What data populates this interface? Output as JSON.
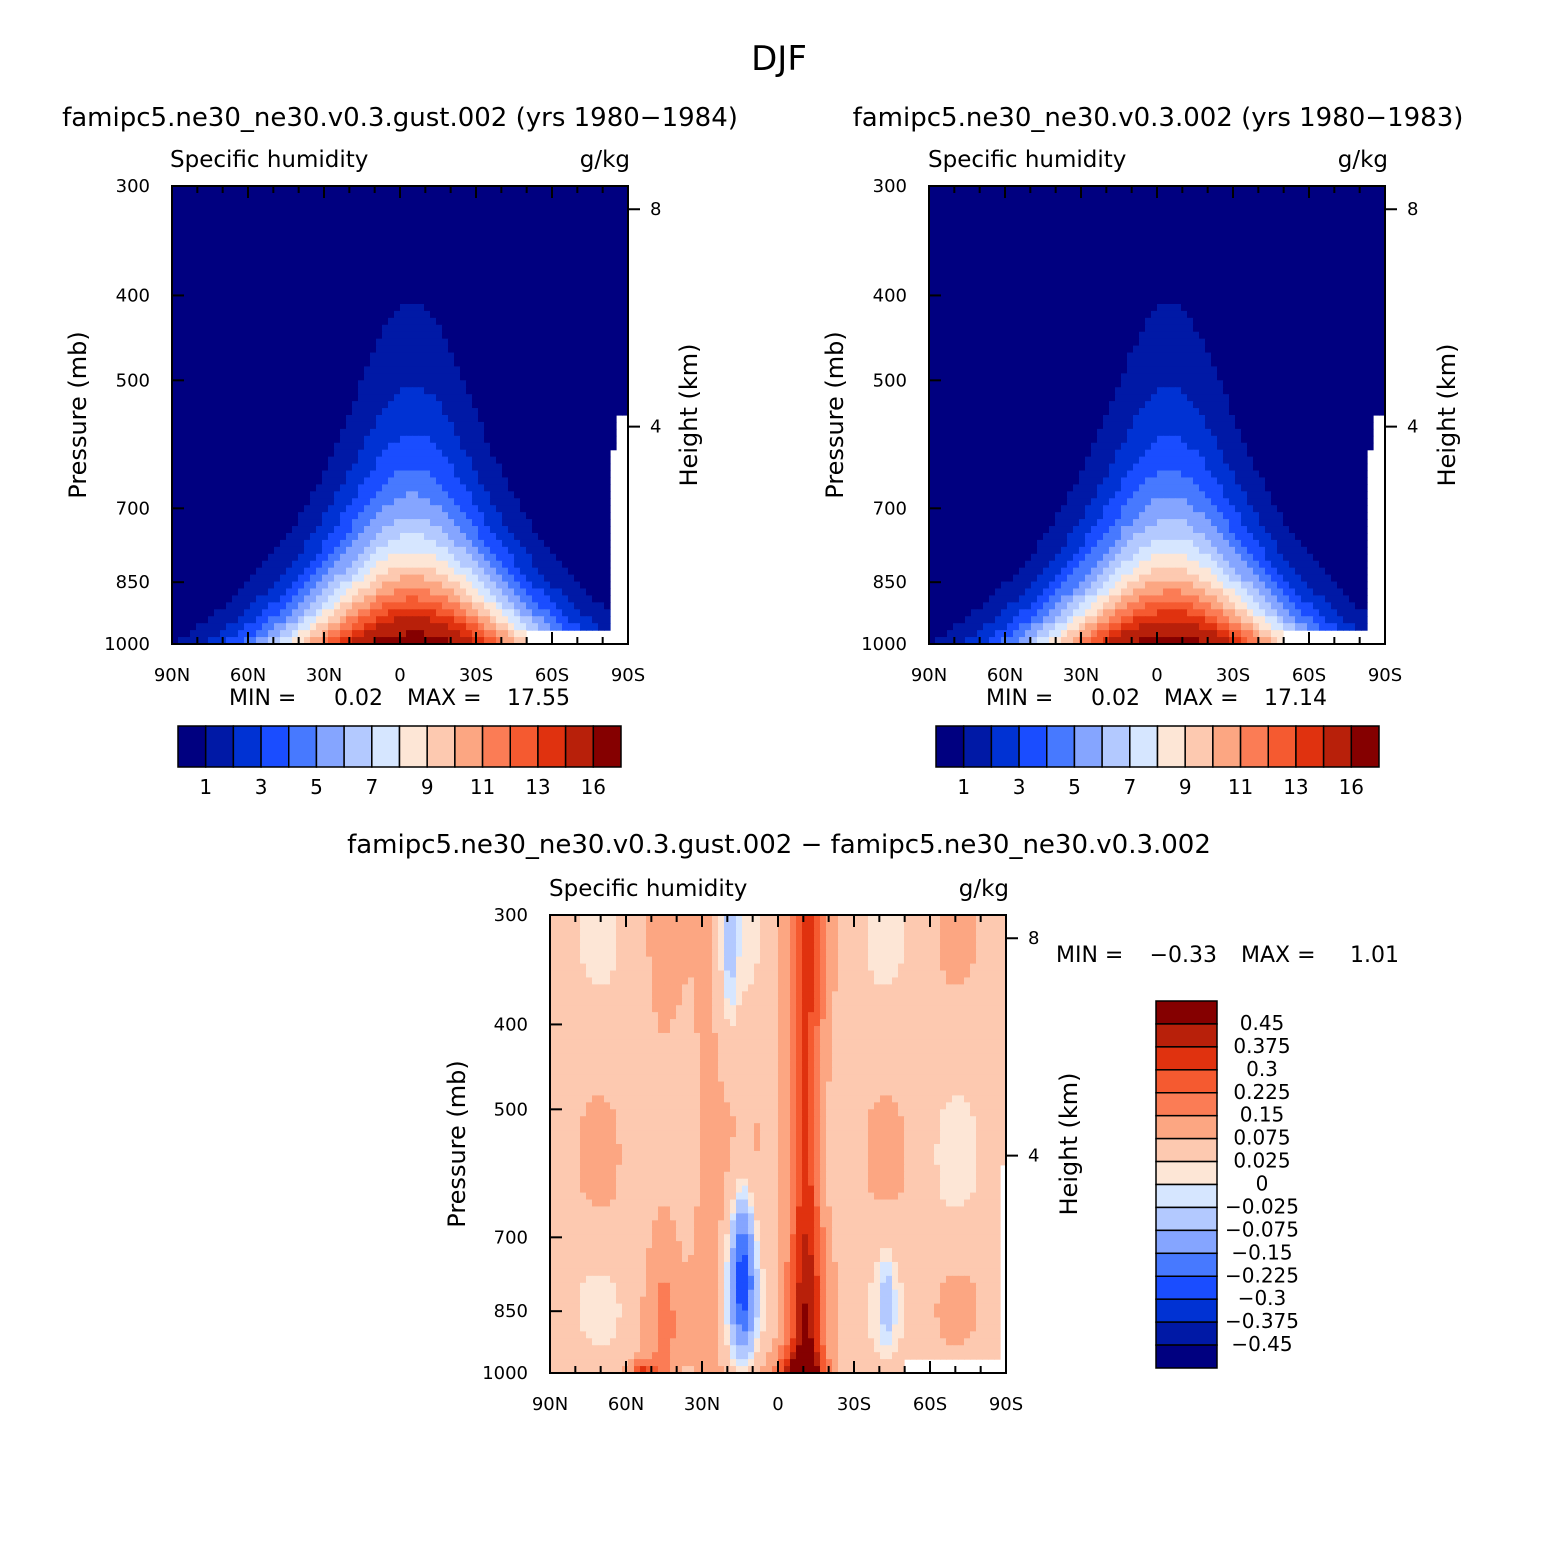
{
  "page_title": "DJF",
  "colors": {
    "seq": [
      "#000080",
      "#0019a6",
      "#0032d3",
      "#1a4dff",
      "#4779ff",
      "#85a5ff",
      "#b3c9ff",
      "#d6e6ff",
      "#fde6d6",
      "#fdc9b0",
      "#fca682",
      "#fb7c55",
      "#f55a30",
      "#e0320f",
      "#b8200a",
      "#850000"
    ],
    "diff": [
      "#000080",
      "#0019a6",
      "#0032d3",
      "#1a4dff",
      "#4779ff",
      "#85a5ff",
      "#b3c9ff",
      "#d6e6ff",
      "#fde6d6",
      "#fdc9b0",
      "#fca682",
      "#fb7c55",
      "#f55a30",
      "#e0320f",
      "#b8200a",
      "#850000"
    ]
  },
  "chart_data": [
    {
      "type": "heatmap",
      "title": "famipc5.ne30_ne30.v0.3.gust.002 (yrs 1980−1984)",
      "subtitle_left": "Specific humidity",
      "subtitle_right": "g/kg",
      "ylabel": "Pressure (mb)",
      "y2label": "Height (km)",
      "x_ticks": [
        "90N",
        "60N",
        "30N",
        "0",
        "30S",
        "60S",
        "90S"
      ],
      "y_ticks": [
        "300",
        "400",
        "500",
        "700",
        "850",
        "1000"
      ],
      "y2_ticks": [
        "8",
        "4"
      ],
      "min_label": "MIN =",
      "min_value": "0.02",
      "max_label": "MAX =",
      "max_value": "17.55",
      "max": 17.55,
      "colorbar_labels": [
        "1",
        "3",
        "5",
        "7",
        "9",
        "11",
        "13",
        "16"
      ]
    },
    {
      "type": "heatmap",
      "title": "famipc5.ne30_ne30.v0.3.002 (yrs 1980−1983)",
      "subtitle_left": "Specific humidity",
      "subtitle_right": "g/kg",
      "ylabel": "Pressure (mb)",
      "y2label": "Height (km)",
      "x_ticks": [
        "90N",
        "60N",
        "30N",
        "0",
        "30S",
        "60S",
        "90S"
      ],
      "y_ticks": [
        "300",
        "400",
        "500",
        "700",
        "850",
        "1000"
      ],
      "y2_ticks": [
        "8",
        "4"
      ],
      "min_label": "MIN =",
      "min_value": "0.02",
      "max_label": "MAX =",
      "max_value": "17.14",
      "max": 17.14,
      "colorbar_labels": [
        "1",
        "3",
        "5",
        "7",
        "9",
        "11",
        "13",
        "16"
      ]
    },
    {
      "type": "heatmap",
      "title": "famipc5.ne30_ne30.v0.3.gust.002 − famipc5.ne30_ne30.v0.3.002",
      "subtitle_left": "Specific humidity",
      "subtitle_right": "g/kg",
      "ylabel": "Pressure (mb)",
      "y2label": "Height (km)",
      "x_ticks": [
        "90N",
        "60N",
        "30N",
        "0",
        "30S",
        "60S",
        "90S"
      ],
      "y_ticks": [
        "300",
        "400",
        "500",
        "700",
        "850",
        "1000"
      ],
      "y2_ticks": [
        "8",
        "4"
      ],
      "min_label": "MIN =",
      "min_value": "−0.33",
      "max_label": "MAX =",
      "max_value": "1.01",
      "colorbar_labels": [
        "0.45",
        "0.375",
        "0.3",
        "0.225",
        "0.15",
        "0.075",
        "0.025",
        "0",
        "−0.025",
        "−0.075",
        "−0.15",
        "−0.225",
        "−0.3",
        "−0.375",
        "−0.45"
      ]
    }
  ]
}
